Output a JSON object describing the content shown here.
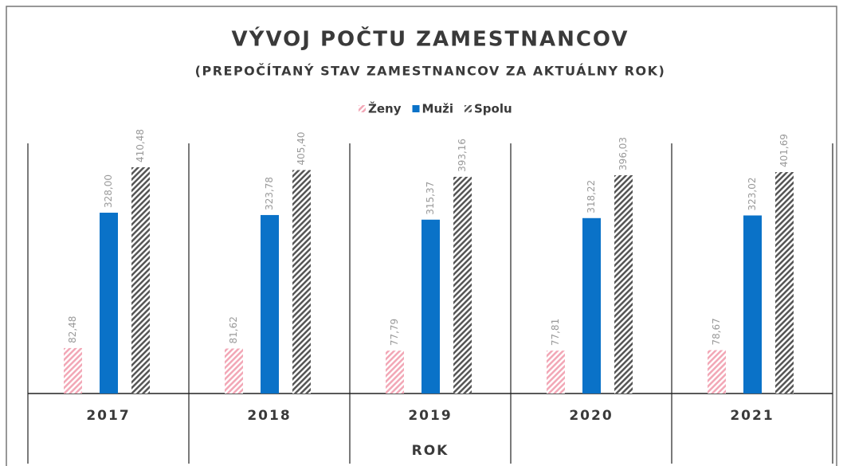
{
  "chart_data": {
    "type": "bar",
    "title": "VÝVOJ POČTU ZAMESTNANCOV",
    "subtitle": "(PREPOČÍTANÝ STAV ZAMESTNANCOV ZA AKTUÁLNY ROK)",
    "x_label": "ROK",
    "categories": [
      "2017",
      "2018",
      "2019",
      "2020",
      "2021"
    ],
    "series": [
      {
        "name": "Ženy",
        "color": "#f2a7b6",
        "hatched": true,
        "values": [
          82.48,
          81.62,
          77.79,
          77.81,
          78.67
        ],
        "value_labels": [
          "82,48",
          "81,62",
          "77,79",
          "77,81",
          "78,67"
        ]
      },
      {
        "name": "Muži",
        "color": "#0a72c8",
        "hatched": false,
        "values": [
          328.0,
          323.78,
          315.37,
          318.22,
          323.02
        ],
        "value_labels": [
          "328,00",
          "323,78",
          "315,37",
          "318,22",
          "323,02"
        ]
      },
      {
        "name": "Spolu",
        "color": "#555555",
        "hatched": true,
        "values": [
          410.48,
          405.4,
          393.16,
          396.03,
          401.69
        ],
        "value_labels": [
          "410,48",
          "405,40",
          "393,16",
          "396,03",
          "401,69"
        ]
      }
    ],
    "legend": "top"
  }
}
